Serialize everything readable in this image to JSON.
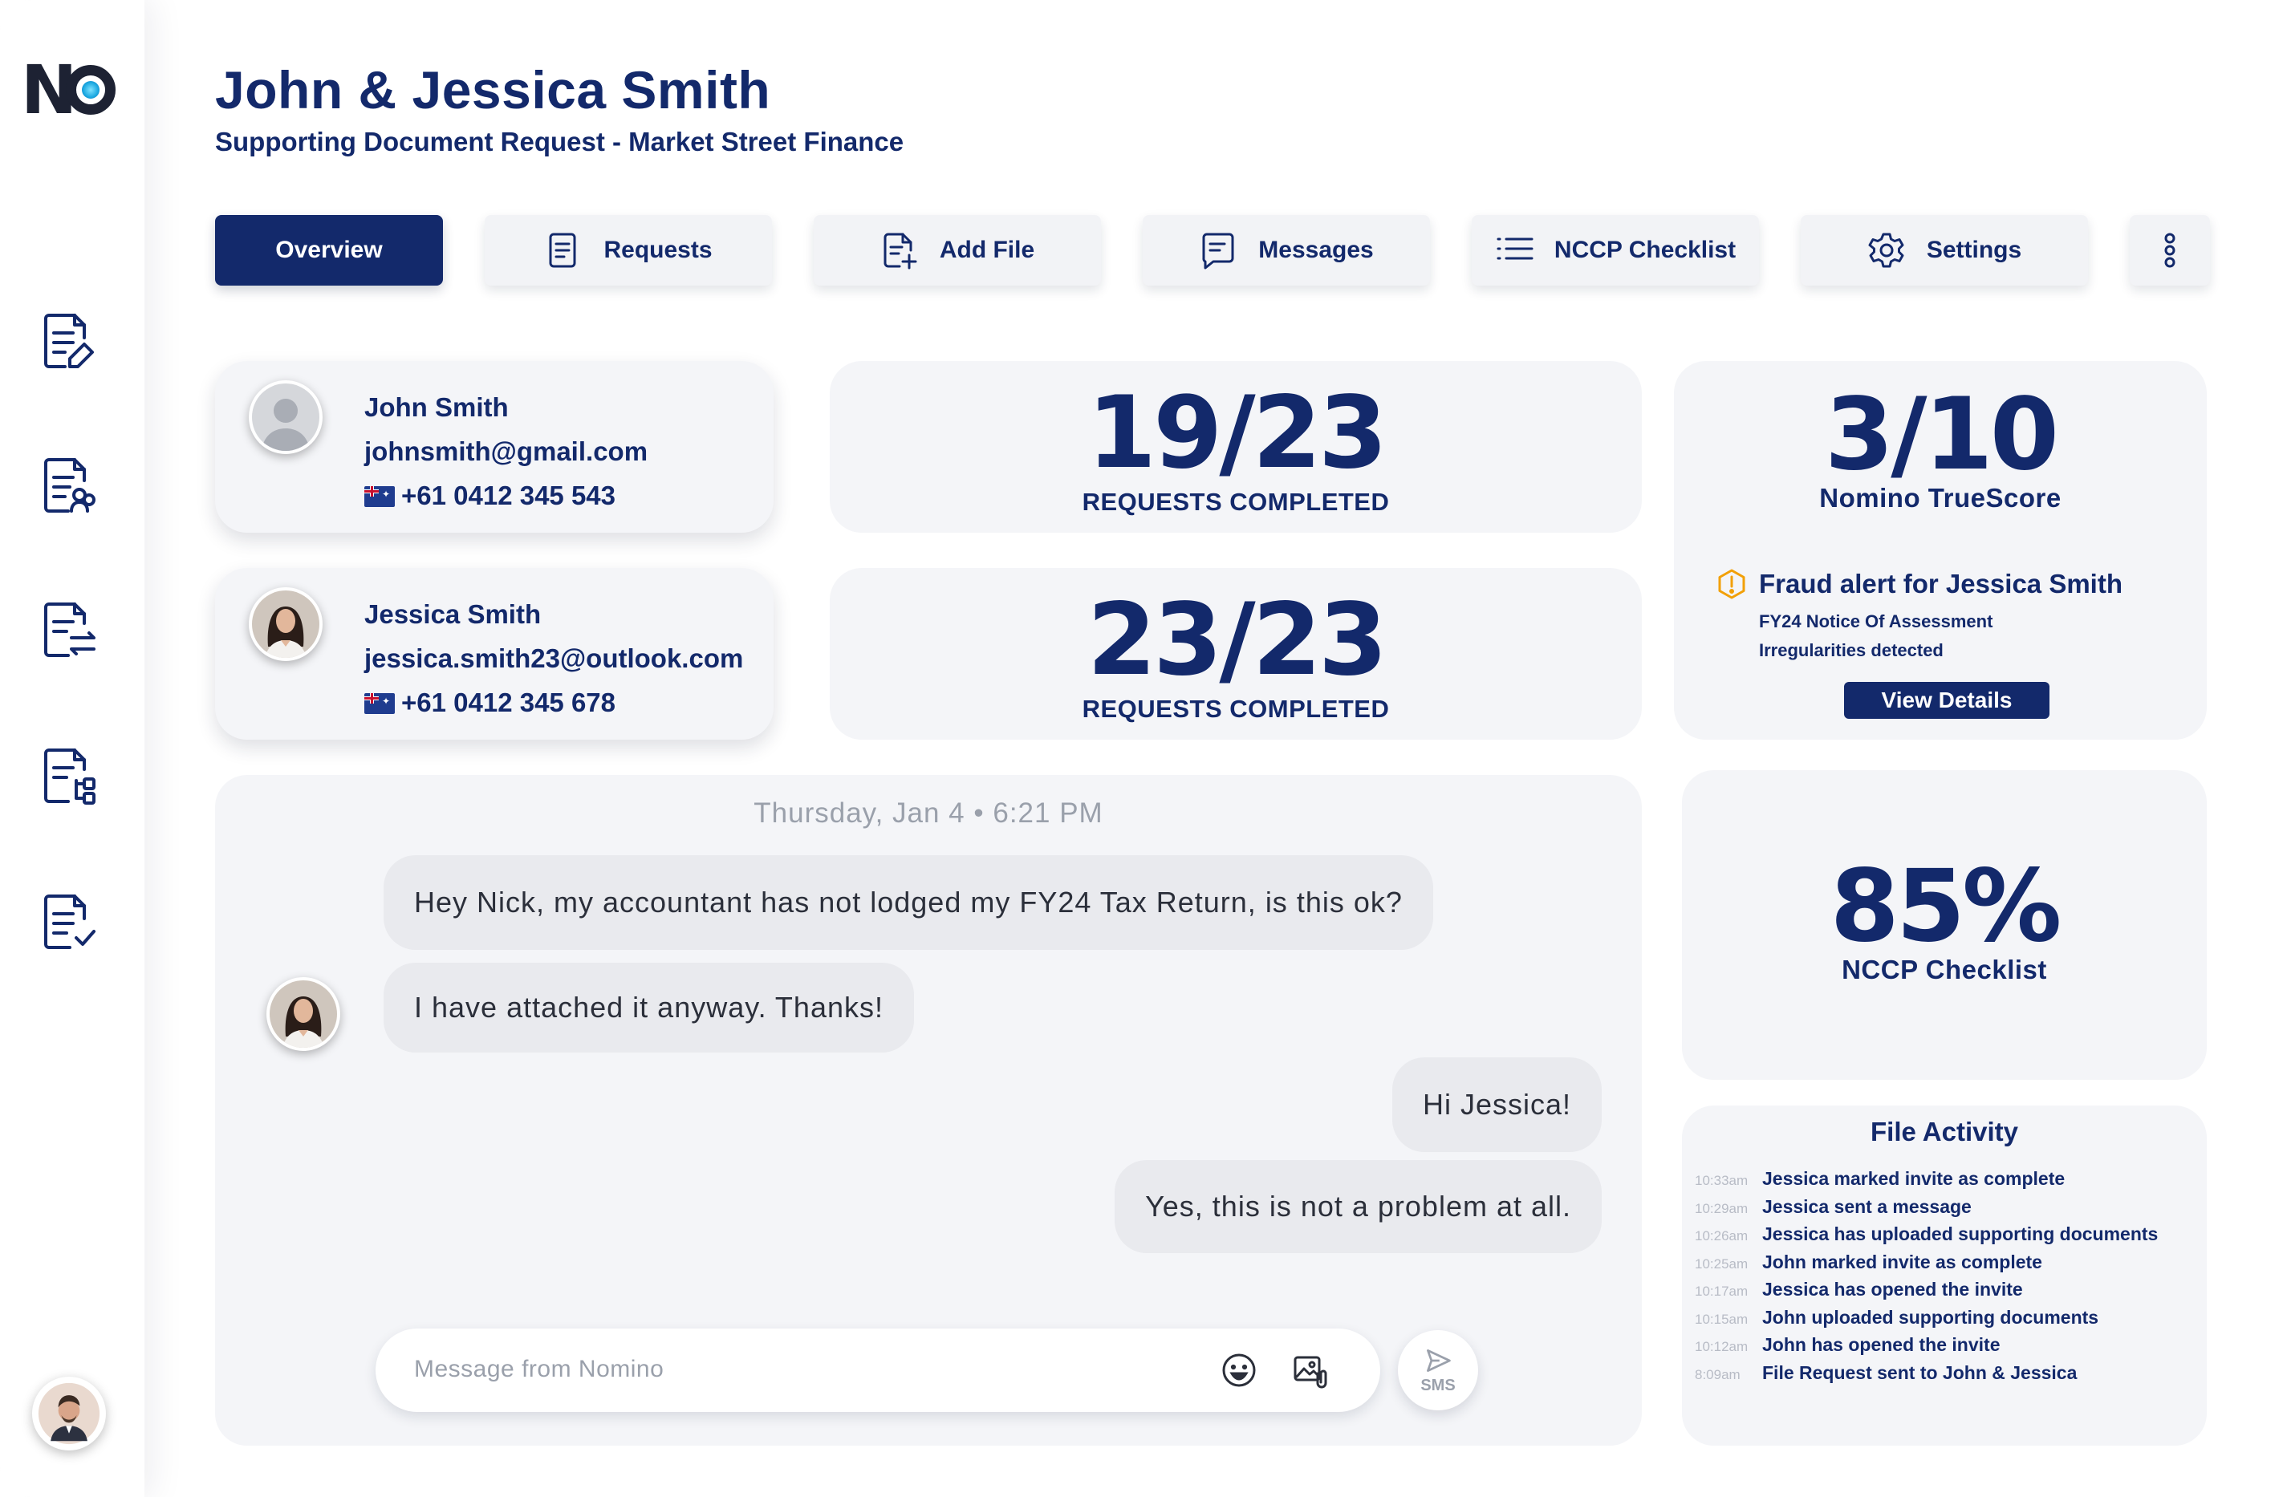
{
  "app": {
    "logo_text": "NO"
  },
  "header": {
    "title": "John & Jessica Smith",
    "subtitle": "Supporting Document Request - Market Street Finance"
  },
  "tabs": [
    {
      "label": "Overview",
      "icon": "none",
      "active": true
    },
    {
      "label": "Requests",
      "icon": "document-icon",
      "active": false
    },
    {
      "label": "Add File",
      "icon": "add-file-icon",
      "active": false
    },
    {
      "label": "Messages",
      "icon": "message-icon",
      "active": false
    },
    {
      "label": "NCCP Checklist",
      "icon": "list-icon",
      "active": false
    },
    {
      "label": "Settings",
      "icon": "gear-icon",
      "active": false
    }
  ],
  "contacts": [
    {
      "name": "John Smith",
      "email": "johnsmith@gmail.com",
      "phone": "+61  0412 345 543"
    },
    {
      "name": "Jessica Smith",
      "email": "jessica.smith23@outlook.com",
      "phone": "+61  0412 345 678"
    }
  ],
  "stats": [
    {
      "value": "19/23",
      "label": "REQUESTS COMPLETED"
    },
    {
      "value": "23/23",
      "label": "REQUESTS COMPLETED"
    }
  ],
  "truescore": {
    "value": "3/10",
    "label": "Nomino TrueScore",
    "fraud_title": "Fraud alert for Jessica Smith",
    "fraud_line1": "FY24 Notice Of Assessment",
    "fraud_line2": "Irregularities detected",
    "button": "View Details"
  },
  "nccp": {
    "value": "85%",
    "label": "NCCP Checklist"
  },
  "chat": {
    "date": "Thursday, Jan 4  •  6:21 PM",
    "messages": [
      {
        "from": "them",
        "text": "Hey Nick, my accountant has not lodged my FY24 Tax Return, is this ok?"
      },
      {
        "from": "them",
        "text": "I have attached it anyway. Thanks!"
      },
      {
        "from": "me",
        "text": "Hi Jessica!"
      },
      {
        "from": "me",
        "text": "Yes, this is not a problem at all."
      }
    ],
    "input_placeholder": "Message from Nomino",
    "send_label": "SMS"
  },
  "file_activity": {
    "title": "File Activity",
    "items": [
      {
        "time": "10:33am",
        "text": "Jessica marked invite as complete"
      },
      {
        "time": "10:29am",
        "text": "Jessica sent a message"
      },
      {
        "time": "10:26am",
        "text": "Jessica has uploaded supporting documents"
      },
      {
        "time": "10:25am",
        "text": "John marked invite as complete"
      },
      {
        "time": "10:17am",
        "text": "Jessica has opened the invite"
      },
      {
        "time": "10:15am",
        "text": "John uploaded supporting documents"
      },
      {
        "time": "10:12am",
        "text": "John has opened the invite"
      },
      {
        "time": "8:09am",
        "text": "File Request sent to John & Jessica"
      }
    ]
  },
  "colors": {
    "brand_navy": "#13296b",
    "card_bg": "#f4f5f8",
    "alert_amber": "#f2a007"
  }
}
